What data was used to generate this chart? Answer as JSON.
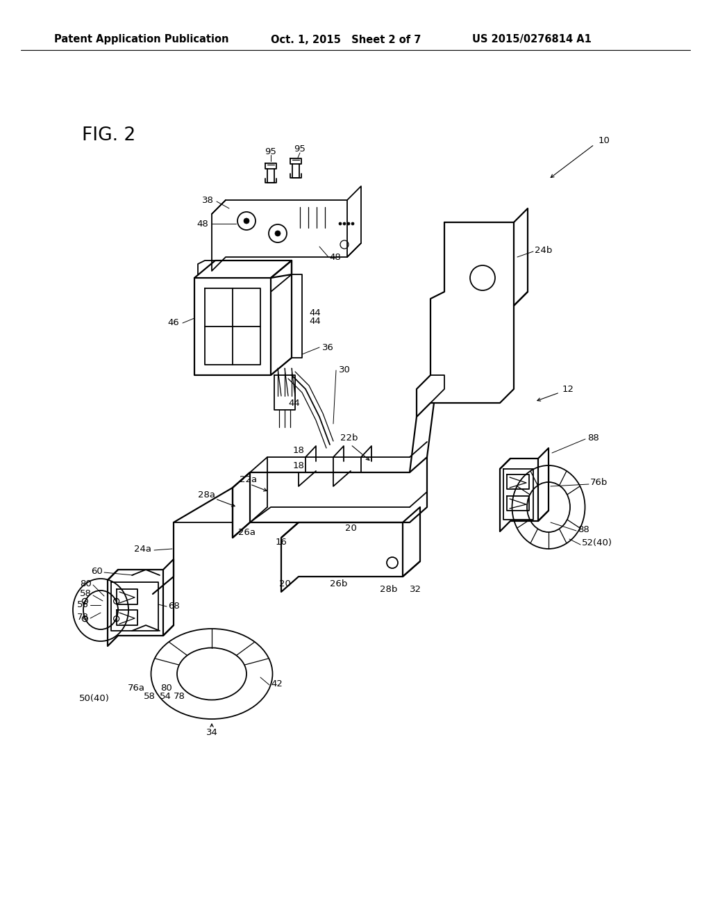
{
  "bg_color": "#ffffff",
  "header_left": "Patent Application Publication",
  "header_mid": "Oct. 1, 2015   Sheet 2 of 7",
  "header_right": "US 2015/0276814 A1",
  "fig_label": "FIG. 2",
  "label_fontsize": 10.5,
  "header_fontsize": 10.5
}
